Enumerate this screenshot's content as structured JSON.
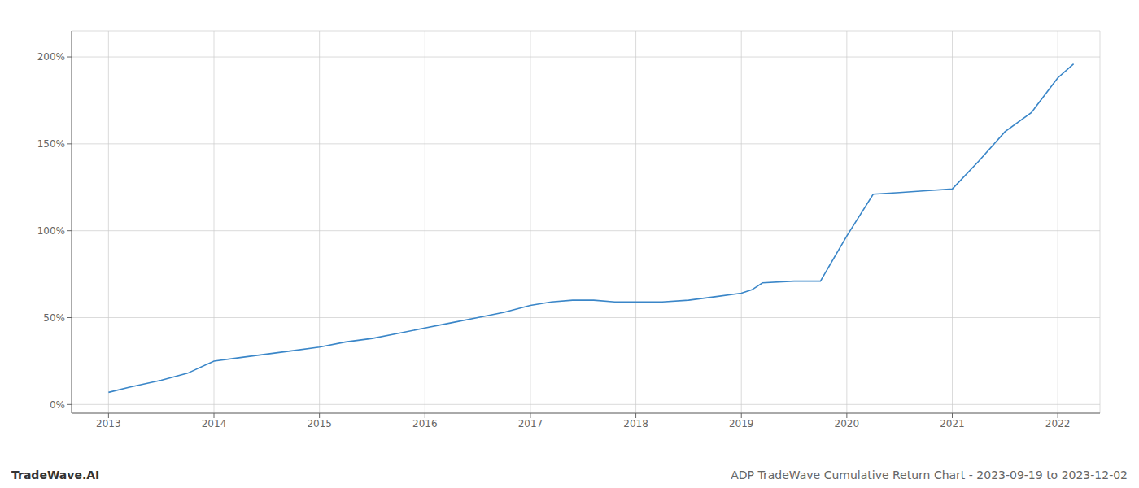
{
  "chart_data": {
    "type": "line",
    "title": "ADP TradeWave Cumulative Return Chart - 2023-09-19 to 2023-12-02",
    "annotations": [
      "TradeWave.AI"
    ],
    "x": [
      2013.0,
      2013.2,
      2013.5,
      2013.75,
      2014.0,
      2014.25,
      2014.5,
      2014.75,
      2015.0,
      2015.25,
      2015.5,
      2015.75,
      2016.0,
      2016.25,
      2016.5,
      2016.75,
      2017.0,
      2017.2,
      2017.4,
      2017.6,
      2017.8,
      2018.0,
      2018.25,
      2018.5,
      2018.75,
      2019.0,
      2019.1,
      2019.2,
      2019.5,
      2019.75,
      2020.0,
      2020.25,
      2020.5,
      2020.75,
      2021.0,
      2021.25,
      2021.5,
      2021.75,
      2022.0,
      2022.15
    ],
    "values": [
      7,
      10,
      14,
      18,
      25,
      27,
      29,
      31,
      33,
      36,
      38,
      41,
      44,
      47,
      50,
      53,
      57,
      59,
      60,
      60,
      59,
      59,
      59,
      60,
      62,
      64,
      66,
      70,
      71,
      71,
      97,
      121,
      122,
      123,
      124,
      140,
      157,
      168,
      188,
      196
    ],
    "color": "#3a86c8",
    "xlim": [
      2012.65,
      2022.4
    ],
    "ylim": [
      -5,
      215
    ],
    "xticks": [
      2013,
      2014,
      2015,
      2016,
      2017,
      2018,
      2019,
      2020,
      2021,
      2022
    ],
    "yticks": [
      {
        "value": 0,
        "label": "0%"
      },
      {
        "value": 50,
        "label": "50%"
      },
      {
        "value": 100,
        "label": "100%"
      },
      {
        "value": 150,
        "label": "150%"
      },
      {
        "value": 200,
        "label": "200%"
      }
    ],
    "grid": true
  }
}
